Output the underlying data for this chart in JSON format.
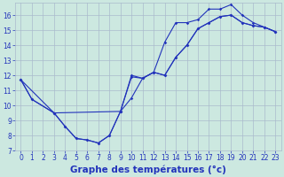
{
  "xlabel": "Graphe des températures (°c)",
  "bg_color": "#cce8e0",
  "line_color": "#2233bb",
  "marker": "D",
  "markersize": 1.8,
  "linewidth": 0.8,
  "xlim": [
    -0.5,
    23.5
  ],
  "ylim": [
    7,
    16.8
  ],
  "yticks": [
    7,
    8,
    9,
    10,
    11,
    12,
    13,
    14,
    15,
    16
  ],
  "xticks": [
    0,
    1,
    2,
    3,
    4,
    5,
    6,
    7,
    8,
    9,
    10,
    11,
    12,
    13,
    14,
    15,
    16,
    17,
    18,
    19,
    20,
    21,
    22,
    23
  ],
  "line1_x": [
    0,
    1,
    3,
    4,
    5,
    6,
    7,
    8,
    9,
    10,
    11,
    12,
    13,
    14,
    15,
    16,
    17,
    18,
    19,
    20,
    21,
    22,
    23
  ],
  "line1_y": [
    11.7,
    10.4,
    9.5,
    8.6,
    7.8,
    7.7,
    7.5,
    8.0,
    9.6,
    10.5,
    11.8,
    12.2,
    14.2,
    15.5,
    15.5,
    15.7,
    16.4,
    16.4,
    16.7,
    16.0,
    15.5,
    15.2,
    14.9
  ],
  "line2_x": [
    0,
    1,
    3,
    4,
    5,
    6,
    7,
    8,
    9,
    10,
    11,
    12,
    13,
    14,
    15,
    16,
    17,
    18,
    19,
    20,
    21,
    22,
    23
  ],
  "line2_y": [
    11.7,
    10.4,
    9.5,
    8.6,
    7.8,
    7.7,
    7.5,
    8.0,
    9.6,
    11.9,
    11.8,
    12.2,
    12.0,
    13.2,
    14.0,
    15.1,
    15.5,
    15.9,
    16.0,
    15.5,
    15.3,
    15.2,
    14.9
  ],
  "line3_x": [
    0,
    3,
    9,
    10,
    11,
    12,
    13,
    14,
    15,
    16,
    17,
    18,
    19,
    20,
    21,
    22,
    23
  ],
  "line3_y": [
    11.7,
    9.5,
    9.6,
    12.0,
    11.8,
    12.2,
    12.0,
    13.2,
    14.0,
    15.1,
    15.5,
    15.9,
    16.0,
    15.5,
    15.3,
    15.2,
    14.9
  ],
  "grid_color": "#aabbcc",
  "tick_fontsize": 5.5,
  "xlabel_fontsize": 7.5,
  "xlabel_bold": true
}
